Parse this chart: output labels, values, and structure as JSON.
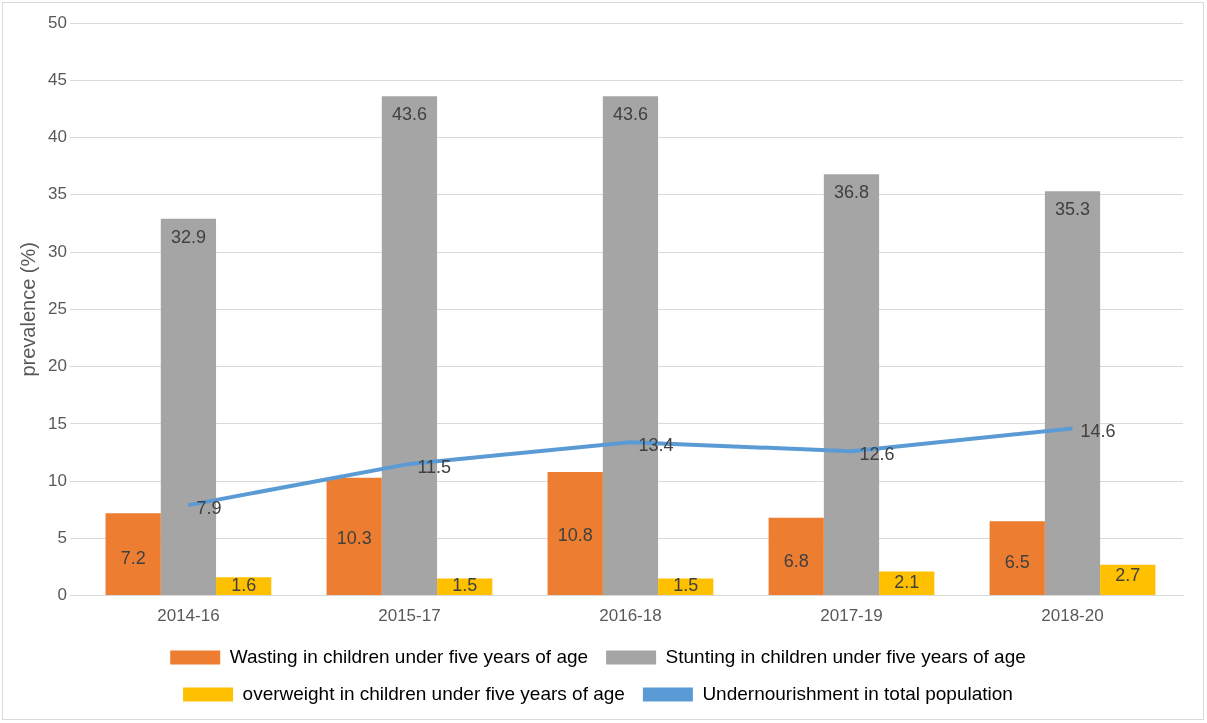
{
  "chart_data": {
    "type": "bar",
    "ylabel": "prevalence (%)",
    "categories": [
      "2014-16",
      "2015-17",
      "2016-18",
      "2017-19",
      "2018-20"
    ],
    "series": [
      {
        "name": "Wasting in children under five years of age",
        "color": "#ed7d31",
        "values": [
          7.2,
          10.3,
          10.8,
          6.8,
          6.5
        ]
      },
      {
        "name": "Stunting in children under five years of age",
        "color": "#a5a5a5",
        "values": [
          32.9,
          43.6,
          43.6,
          36.8,
          35.3
        ]
      },
      {
        "name": "overweight in children under five years of age",
        "color": "#ffc000",
        "values": [
          1.6,
          1.5,
          1.5,
          2.1,
          2.7
        ]
      },
      {
        "name": "Undernourishment in total population",
        "color": "#5b9bd5",
        "type": "line",
        "marker": "none",
        "values": [
          7.9,
          11.5,
          13.4,
          12.6,
          14.6
        ]
      }
    ],
    "ylim": [
      0,
      50
    ],
    "yticks": [
      0,
      5,
      10,
      15,
      20,
      25,
      30,
      35,
      40,
      45,
      50
    ],
    "grid": "y",
    "legend": "bottom",
    "data_labels": true
  }
}
